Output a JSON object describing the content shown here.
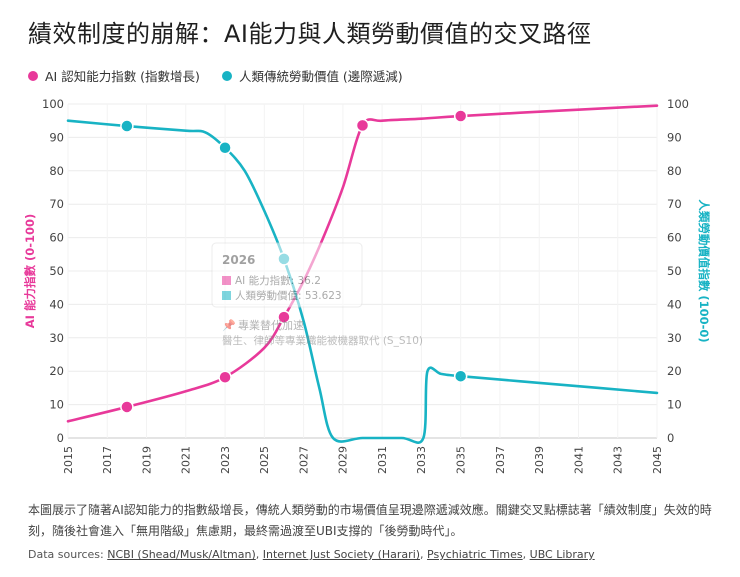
{
  "title": "績效制度的崩解：AI能力與人類勞動價值的交叉路徑",
  "legend": [
    {
      "label": "AI 認知能力指數 (指數增長)",
      "color": "#e8399a"
    },
    {
      "label": "人類傳統勞動價值 (邊際遞減)",
      "color": "#18b3c4"
    }
  ],
  "tooltip": {
    "year": "2026",
    "ai_label": "AI 能力指數: 36.2",
    "human_label": "人類勞動價值: 53.623",
    "annotation_title": "專業替代加速",
    "annotation_text": "醫生、律師等專業職能被機器取代 (S_S10)"
  },
  "caption": "本圖展示了隨著AI認知能力的指數級增長，傳統人類勞動的市場價值呈現邊際遞減效應。關鍵交叉點標誌著「績效制度」失效的時刻，隨後社會進入「無用階級」焦慮期，最終需過渡至UBI支撐的「後勞動時代」。",
  "sources": {
    "prefix": "Data sources: ",
    "links": [
      "NCBI (Shead/Musk/Altman)",
      "Internet Just Society (Harari)",
      "Psychiatric Times",
      "UBC Library"
    ]
  },
  "chart_data": {
    "type": "line",
    "title": "",
    "xlabel": "",
    "ylabel_left": "AI 能力指數 (0-100)",
    "ylabel_right": "人類勞動價值指數 (100-0)",
    "xlim": [
      2015,
      2045
    ],
    "ylim": [
      0,
      100
    ],
    "x_ticks": [
      "2015",
      "2017",
      "2019",
      "2021",
      "2023",
      "2025",
      "2027",
      "2029",
      "2031",
      "2033",
      "2035",
      "2037",
      "2039",
      "2041",
      "2043",
      "2045"
    ],
    "y_ticks": [
      "0",
      "10",
      "20",
      "30",
      "40",
      "50",
      "60",
      "70",
      "80",
      "90",
      "100"
    ],
    "grid": true,
    "series": [
      {
        "name": "AI 認知能力指數 (指數增長)",
        "color": "#e8399a",
        "x": [
          2015,
          2018,
          2021,
          2023,
          2025,
          2026,
          2027,
          2028,
          2029,
          2030,
          2031,
          2033,
          2035,
          2040,
          2045
        ],
        "y": [
          5,
          9.3,
          14,
          18.2,
          27,
          36.2,
          47,
          60,
          75,
          93.6,
          95,
          95.6,
          96.4,
          98,
          99.5
        ],
        "markers_x": [
          2018,
          2023,
          2026,
          2030,
          2035
        ],
        "markers_y": [
          9.3,
          18.2,
          36.2,
          93.6,
          96.4
        ]
      },
      {
        "name": "人類傳統勞動價值 (邊際遞減)",
        "color": "#18b3c4",
        "x": [
          2015,
          2018,
          2021,
          2022,
          2023,
          2024,
          2025,
          2026,
          2027,
          2027.8,
          2028.5,
          2030,
          2032,
          2033.1,
          2033.3,
          2034,
          2035,
          2040,
          2045
        ],
        "y": [
          95,
          93.4,
          92,
          91.5,
          86.9,
          80,
          68,
          53.623,
          35,
          15,
          0,
          0,
          0,
          0,
          19.8,
          19.2,
          18.5,
          16,
          13.5
        ],
        "markers_x": [
          2018,
          2023,
          2026,
          2035
        ],
        "markers_y": [
          93.4,
          86.9,
          53.623,
          18.5
        ]
      }
    ]
  }
}
